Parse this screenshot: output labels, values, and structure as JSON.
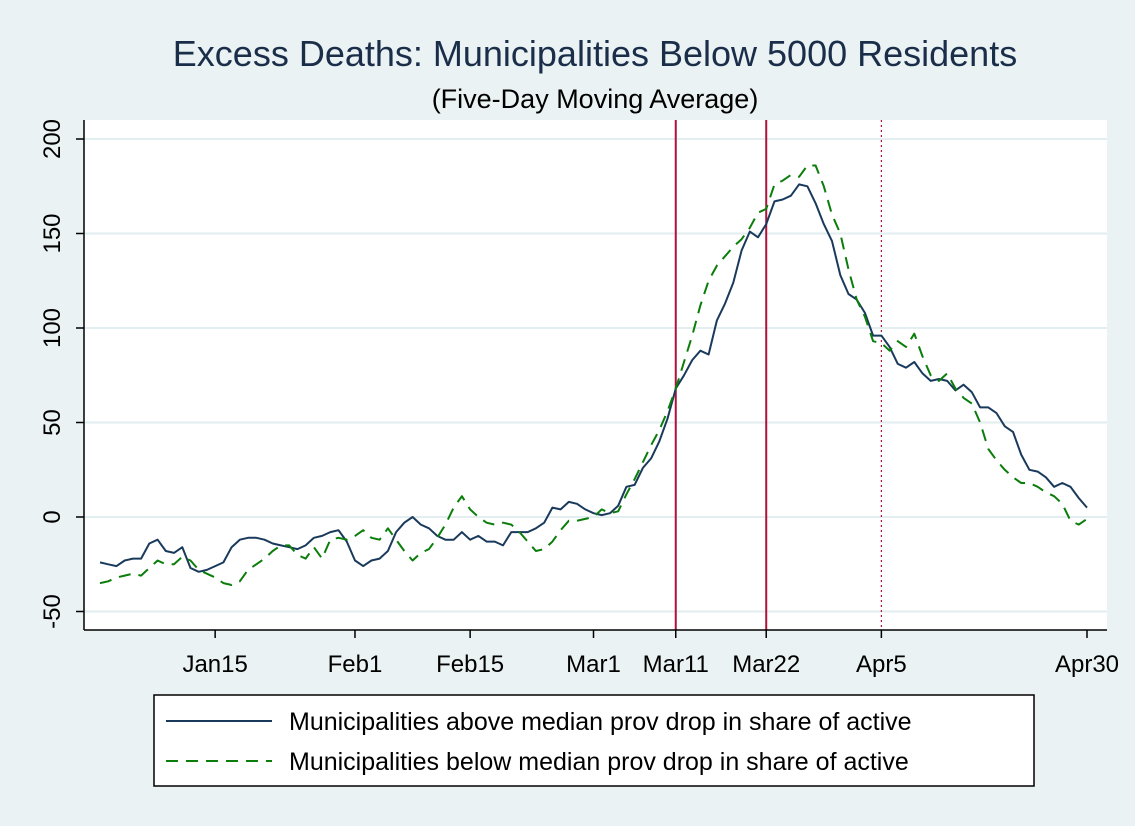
{
  "chart_data": {
    "type": "line",
    "title": "Excess Deaths: Municipalities Below 5000 Residents",
    "subtitle": "(Five-Day Moving Average)",
    "xlabel": "",
    "ylabel": "",
    "ylim": [
      -60,
      210
    ],
    "y_ticks": [
      -50,
      0,
      50,
      100,
      150,
      200
    ],
    "y_tick_labels": [
      "-50",
      "0",
      "50",
      "100",
      "150",
      "200"
    ],
    "x_range": [
      "2020-01-01",
      "2020-04-30"
    ],
    "x_ticks": [
      {
        "date": "2020-01-15",
        "label": "Jan15"
      },
      {
        "date": "2020-02-01",
        "label": "Feb1"
      },
      {
        "date": "2020-02-15",
        "label": "Feb15"
      },
      {
        "date": "2020-03-01",
        "label": "Mar1"
      },
      {
        "date": "2020-03-11",
        "label": "Mar11"
      },
      {
        "date": "2020-03-22",
        "label": "Mar22"
      },
      {
        "date": "2020-04-05",
        "label": "Apr5"
      },
      {
        "date": "2020-04-30",
        "label": "Apr30"
      }
    ],
    "vlines": [
      {
        "date": "2020-03-11",
        "style": "solid",
        "color": "#b0103a"
      },
      {
        "date": "2020-03-22",
        "style": "solid",
        "color": "#b0103a"
      },
      {
        "date": "2020-04-05",
        "style": "dotted",
        "color": "#b0103a"
      }
    ],
    "grid": true,
    "legend_position": "bottom",
    "series": [
      {
        "name": "Municipalities above median prov drop in share of active",
        "color": "#1a3a5c",
        "dash": "solid",
        "points": [
          [
            "2020-01-01",
            -24
          ],
          [
            "2020-01-02",
            -25
          ],
          [
            "2020-01-03",
            -26
          ],
          [
            "2020-01-04",
            -23
          ],
          [
            "2020-01-05",
            -22
          ],
          [
            "2020-01-06",
            -22
          ],
          [
            "2020-01-07",
            -14
          ],
          [
            "2020-01-08",
            -12
          ],
          [
            "2020-01-09",
            -18
          ],
          [
            "2020-01-10",
            -19
          ],
          [
            "2020-01-11",
            -16
          ],
          [
            "2020-01-12",
            -27
          ],
          [
            "2020-01-13",
            -29
          ],
          [
            "2020-01-14",
            -28
          ],
          [
            "2020-01-15",
            -26
          ],
          [
            "2020-01-16",
            -24
          ],
          [
            "2020-01-17",
            -16
          ],
          [
            "2020-01-18",
            -12
          ],
          [
            "2020-01-19",
            -11
          ],
          [
            "2020-01-20",
            -11
          ],
          [
            "2020-01-21",
            -12
          ],
          [
            "2020-01-22",
            -14
          ],
          [
            "2020-01-23",
            -15
          ],
          [
            "2020-01-24",
            -16
          ],
          [
            "2020-01-25",
            -17
          ],
          [
            "2020-01-26",
            -15
          ],
          [
            "2020-01-27",
            -11
          ],
          [
            "2020-01-28",
            -10
          ],
          [
            "2020-01-29",
            -8
          ],
          [
            "2020-01-30",
            -7
          ],
          [
            "2020-01-31",
            -13
          ],
          [
            "2020-02-01",
            -23
          ],
          [
            "2020-02-02",
            -26
          ],
          [
            "2020-02-03",
            -23
          ],
          [
            "2020-02-04",
            -22
          ],
          [
            "2020-02-05",
            -18
          ],
          [
            "2020-02-06",
            -8
          ],
          [
            "2020-02-07",
            -3
          ],
          [
            "2020-02-08",
            0
          ],
          [
            "2020-02-09",
            -4
          ],
          [
            "2020-02-10",
            -6
          ],
          [
            "2020-02-11",
            -10
          ],
          [
            "2020-02-12",
            -12
          ],
          [
            "2020-02-13",
            -12
          ],
          [
            "2020-02-14",
            -8
          ],
          [
            "2020-02-15",
            -12
          ],
          [
            "2020-02-16",
            -10
          ],
          [
            "2020-02-17",
            -13
          ],
          [
            "2020-02-18",
            -13
          ],
          [
            "2020-02-19",
            -15
          ],
          [
            "2020-02-20",
            -8
          ],
          [
            "2020-02-21",
            -8
          ],
          [
            "2020-02-22",
            -8
          ],
          [
            "2020-02-23",
            -6
          ],
          [
            "2020-02-24",
            -3
          ],
          [
            "2020-02-25",
            5
          ],
          [
            "2020-02-26",
            4
          ],
          [
            "2020-02-27",
            8
          ],
          [
            "2020-02-28",
            7
          ],
          [
            "2020-02-29",
            4
          ],
          [
            "2020-03-01",
            2
          ],
          [
            "2020-03-02",
            1
          ],
          [
            "2020-03-03",
            2
          ],
          [
            "2020-03-04",
            6
          ],
          [
            "2020-03-05",
            16
          ],
          [
            "2020-03-06",
            17
          ],
          [
            "2020-03-07",
            26
          ],
          [
            "2020-03-08",
            31
          ],
          [
            "2020-03-09",
            40
          ],
          [
            "2020-03-10",
            52
          ],
          [
            "2020-03-11",
            68
          ],
          [
            "2020-03-12",
            75
          ],
          [
            "2020-03-13",
            83
          ],
          [
            "2020-03-14",
            88
          ],
          [
            "2020-03-15",
            86
          ],
          [
            "2020-03-16",
            104
          ],
          [
            "2020-03-17",
            113
          ],
          [
            "2020-03-18",
            124
          ],
          [
            "2020-03-19",
            141
          ],
          [
            "2020-03-20",
            151
          ],
          [
            "2020-03-21",
            148
          ],
          [
            "2020-03-22",
            155
          ],
          [
            "2020-03-23",
            167
          ],
          [
            "2020-03-24",
            168
          ],
          [
            "2020-03-25",
            170
          ],
          [
            "2020-03-26",
            176
          ],
          [
            "2020-03-27",
            175
          ],
          [
            "2020-03-28",
            166
          ],
          [
            "2020-03-29",
            155
          ],
          [
            "2020-03-30",
            146
          ],
          [
            "2020-03-31",
            128
          ],
          [
            "2020-04-01",
            118
          ],
          [
            "2020-04-02",
            115
          ],
          [
            "2020-04-03",
            108
          ],
          [
            "2020-04-04",
            96
          ],
          [
            "2020-04-05",
            96
          ],
          [
            "2020-04-06",
            90
          ],
          [
            "2020-04-07",
            81
          ],
          [
            "2020-04-08",
            79
          ],
          [
            "2020-04-09",
            82
          ],
          [
            "2020-04-10",
            76
          ],
          [
            "2020-04-11",
            72
          ],
          [
            "2020-04-12",
            73
          ],
          [
            "2020-04-13",
            72
          ],
          [
            "2020-04-14",
            67
          ],
          [
            "2020-04-15",
            70
          ],
          [
            "2020-04-16",
            66
          ],
          [
            "2020-04-17",
            58
          ],
          [
            "2020-04-18",
            58
          ],
          [
            "2020-04-19",
            55
          ],
          [
            "2020-04-20",
            48
          ],
          [
            "2020-04-21",
            45
          ],
          [
            "2020-04-22",
            33
          ],
          [
            "2020-04-23",
            25
          ],
          [
            "2020-04-24",
            24
          ],
          [
            "2020-04-25",
            21
          ],
          [
            "2020-04-26",
            16
          ],
          [
            "2020-04-27",
            18
          ],
          [
            "2020-04-28",
            16
          ],
          [
            "2020-04-29",
            10
          ],
          [
            "2020-04-30",
            5
          ]
        ]
      },
      {
        "name": "Municipalities below median prov drop in share of active",
        "color": "#0a7d0a",
        "dash": "dashed",
        "points": [
          [
            "2020-01-01",
            -35
          ],
          [
            "2020-01-02",
            -34
          ],
          [
            "2020-01-03",
            -32
          ],
          [
            "2020-01-04",
            -31
          ],
          [
            "2020-01-05",
            -30
          ],
          [
            "2020-01-06",
            -31
          ],
          [
            "2020-01-07",
            -27
          ],
          [
            "2020-01-08",
            -23
          ],
          [
            "2020-01-09",
            -25
          ],
          [
            "2020-01-10",
            -25
          ],
          [
            "2020-01-11",
            -21
          ],
          [
            "2020-01-12",
            -23
          ],
          [
            "2020-01-13",
            -28
          ],
          [
            "2020-01-14",
            -30
          ],
          [
            "2020-01-15",
            -32
          ],
          [
            "2020-01-16",
            -35
          ],
          [
            "2020-01-17",
            -36
          ],
          [
            "2020-01-18",
            -34
          ],
          [
            "2020-01-19",
            -28
          ],
          [
            "2020-01-20",
            -25
          ],
          [
            "2020-01-21",
            -22
          ],
          [
            "2020-01-22",
            -18
          ],
          [
            "2020-01-23",
            -15
          ],
          [
            "2020-01-24",
            -15
          ],
          [
            "2020-01-25",
            -20
          ],
          [
            "2020-01-26",
            -22
          ],
          [
            "2020-01-27",
            -16
          ],
          [
            "2020-01-28",
            -22
          ],
          [
            "2020-01-29",
            -12
          ],
          [
            "2020-01-30",
            -11
          ],
          [
            "2020-01-31",
            -12
          ],
          [
            "2020-02-01",
            -10
          ],
          [
            "2020-02-02",
            -7
          ],
          [
            "2020-02-03",
            -11
          ],
          [
            "2020-02-04",
            -12
          ],
          [
            "2020-02-05",
            -6
          ],
          [
            "2020-02-06",
            -12
          ],
          [
            "2020-02-07",
            -18
          ],
          [
            "2020-02-08",
            -23
          ],
          [
            "2020-02-09",
            -19
          ],
          [
            "2020-02-10",
            -17
          ],
          [
            "2020-02-11",
            -11
          ],
          [
            "2020-02-12",
            -4
          ],
          [
            "2020-02-13",
            5
          ],
          [
            "2020-02-14",
            11
          ],
          [
            "2020-02-15",
            4
          ],
          [
            "2020-02-16",
            0
          ],
          [
            "2020-02-17",
            -3
          ],
          [
            "2020-02-18",
            -4
          ],
          [
            "2020-02-19",
            -3
          ],
          [
            "2020-02-20",
            -4
          ],
          [
            "2020-02-21",
            -8
          ],
          [
            "2020-02-22",
            -13
          ],
          [
            "2020-02-23",
            -18
          ],
          [
            "2020-02-24",
            -17
          ],
          [
            "2020-02-25",
            -13
          ],
          [
            "2020-02-26",
            -7
          ],
          [
            "2020-02-27",
            -2
          ],
          [
            "2020-02-28",
            -2
          ],
          [
            "2020-02-29",
            -1
          ],
          [
            "2020-03-01",
            0
          ],
          [
            "2020-03-02",
            4
          ],
          [
            "2020-03-03",
            2
          ],
          [
            "2020-03-04",
            3
          ],
          [
            "2020-03-05",
            12
          ],
          [
            "2020-03-06",
            20
          ],
          [
            "2020-03-07",
            29
          ],
          [
            "2020-03-08",
            38
          ],
          [
            "2020-03-09",
            46
          ],
          [
            "2020-03-10",
            56
          ],
          [
            "2020-03-11",
            68
          ],
          [
            "2020-03-12",
            82
          ],
          [
            "2020-03-13",
            96
          ],
          [
            "2020-03-14",
            112
          ],
          [
            "2020-03-15",
            125
          ],
          [
            "2020-03-16",
            133
          ],
          [
            "2020-03-17",
            138
          ],
          [
            "2020-03-18",
            143
          ],
          [
            "2020-03-19",
            147
          ],
          [
            "2020-03-20",
            153
          ],
          [
            "2020-03-21",
            161
          ],
          [
            "2020-03-22",
            163
          ],
          [
            "2020-03-23",
            176
          ],
          [
            "2020-03-24",
            178
          ],
          [
            "2020-03-25",
            181
          ],
          [
            "2020-03-26",
            180
          ],
          [
            "2020-03-27",
            186
          ],
          [
            "2020-03-28",
            186
          ],
          [
            "2020-03-29",
            175
          ],
          [
            "2020-03-30",
            160
          ],
          [
            "2020-03-31",
            150
          ],
          [
            "2020-04-01",
            131
          ],
          [
            "2020-04-02",
            115
          ],
          [
            "2020-04-03",
            106
          ],
          [
            "2020-04-04",
            93
          ],
          [
            "2020-04-05",
            92
          ],
          [
            "2020-04-06",
            88
          ],
          [
            "2020-04-07",
            93
          ],
          [
            "2020-04-08",
            90
          ],
          [
            "2020-04-09",
            97
          ],
          [
            "2020-04-10",
            85
          ],
          [
            "2020-04-11",
            75
          ],
          [
            "2020-04-12",
            72
          ],
          [
            "2020-04-13",
            76
          ],
          [
            "2020-04-14",
            68
          ],
          [
            "2020-04-15",
            63
          ],
          [
            "2020-04-16",
            60
          ],
          [
            "2020-04-17",
            50
          ],
          [
            "2020-04-18",
            36
          ],
          [
            "2020-04-19",
            30
          ],
          [
            "2020-04-20",
            25
          ],
          [
            "2020-04-21",
            21
          ],
          [
            "2020-04-22",
            18
          ],
          [
            "2020-04-23",
            18
          ],
          [
            "2020-04-24",
            16
          ],
          [
            "2020-04-25",
            13
          ],
          [
            "2020-04-26",
            11
          ],
          [
            "2020-04-27",
            7
          ],
          [
            "2020-04-28",
            -2
          ],
          [
            "2020-04-29",
            -4
          ],
          [
            "2020-04-30",
            -1
          ]
        ]
      }
    ]
  }
}
